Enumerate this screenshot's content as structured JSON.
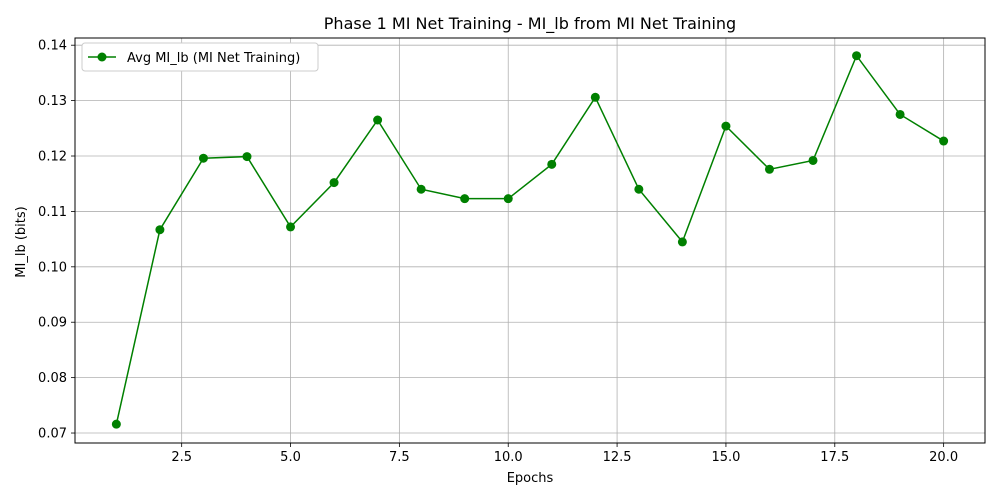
{
  "chart_data": {
    "type": "line",
    "title": "Phase 1 MI Net Training - MI_lb from MI Net Training",
    "xlabel": "Epochs",
    "ylabel": "MI_lb (bits)",
    "xlim": [
      0.05,
      20.95
    ],
    "ylim": [
      0.0682,
      0.1413
    ],
    "xticks": [
      2.5,
      5.0,
      7.5,
      10.0,
      12.5,
      15.0,
      17.5,
      20.0
    ],
    "xtick_labels": [
      "2.5",
      "5.0",
      "7.5",
      "10.0",
      "12.5",
      "15.0",
      "17.5",
      "20.0"
    ],
    "yticks": [
      0.07,
      0.08,
      0.09,
      0.1,
      0.11,
      0.12,
      0.13,
      0.14
    ],
    "ytick_labels": [
      "0.07",
      "0.08",
      "0.09",
      "0.10",
      "0.11",
      "0.12",
      "0.13",
      "0.14"
    ],
    "grid": true,
    "legend_position": "top-left",
    "series": [
      {
        "name": "Avg MI_lb (MI Net Training)",
        "color": "#008000",
        "marker": "circle",
        "x": [
          1,
          2,
          3,
          4,
          5,
          6,
          7,
          8,
          9,
          10,
          11,
          12,
          13,
          14,
          15,
          16,
          17,
          18,
          19,
          20
        ],
        "y": [
          0.0716,
          0.1067,
          0.1196,
          0.1199,
          0.1072,
          0.1152,
          0.1265,
          0.114,
          0.1123,
          0.1123,
          0.1185,
          0.1306,
          0.114,
          0.1045,
          0.1254,
          0.1176,
          0.1192,
          0.1381,
          0.1275,
          0.1227
        ]
      }
    ]
  }
}
